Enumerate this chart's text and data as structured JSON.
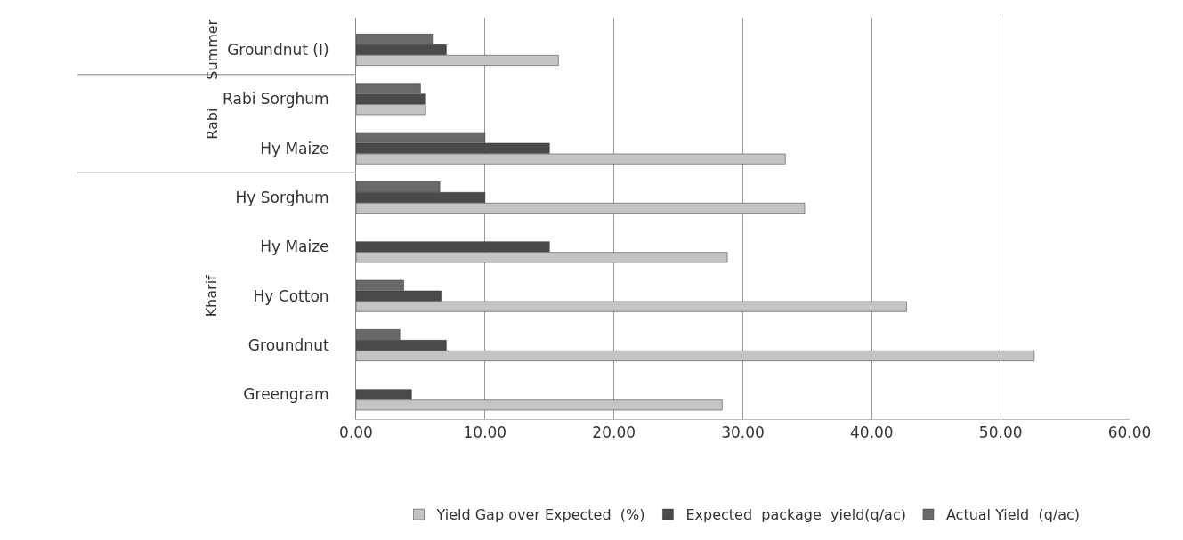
{
  "chart_data": {
    "type": "bar",
    "orientation": "horizontal",
    "categories": [
      "Groundnut (I)",
      "Rabi Sorghum",
      "Hy Maize",
      "Hy Sorghum",
      "Hy Maize",
      "Hy Cotton",
      "Groundnut",
      "Greengram"
    ],
    "series": [
      {
        "name": "Yield Gap over Expected  (%)",
        "color": "#c4c4c4",
        "values": [
          15.7,
          5.4,
          33.3,
          34.8,
          28.8,
          42.7,
          52.6,
          28.4
        ]
      },
      {
        "name": "Expected  package  yield(q/ac)",
        "color": "#4a4a4a",
        "values": [
          7.0,
          5.4,
          15.0,
          10.0,
          15.0,
          6.6,
          7.0,
          4.3
        ]
      },
      {
        "name": "Actual Yield  (q/ac)",
        "color": "#6a6a6a",
        "values": [
          6.0,
          5.0,
          10.0,
          6.5,
          null,
          3.7,
          3.4,
          null
        ]
      }
    ],
    "annotations": [
      "Summer",
      "Rabi",
      "Kharif"
    ],
    "xlim": [
      0,
      60
    ],
    "xticks": [
      {
        "value": 0,
        "label": "0.00"
      },
      {
        "value": 10,
        "label": "10.00"
      },
      {
        "value": 20,
        "label": "20.00"
      },
      {
        "value": 30,
        "label": "30.00"
      },
      {
        "value": 40,
        "label": "40.00"
      },
      {
        "value": 50,
        "label": "50.00"
      },
      {
        "value": 60,
        "label": "60.00"
      }
    ],
    "grid": "x",
    "legend": "bottom"
  }
}
